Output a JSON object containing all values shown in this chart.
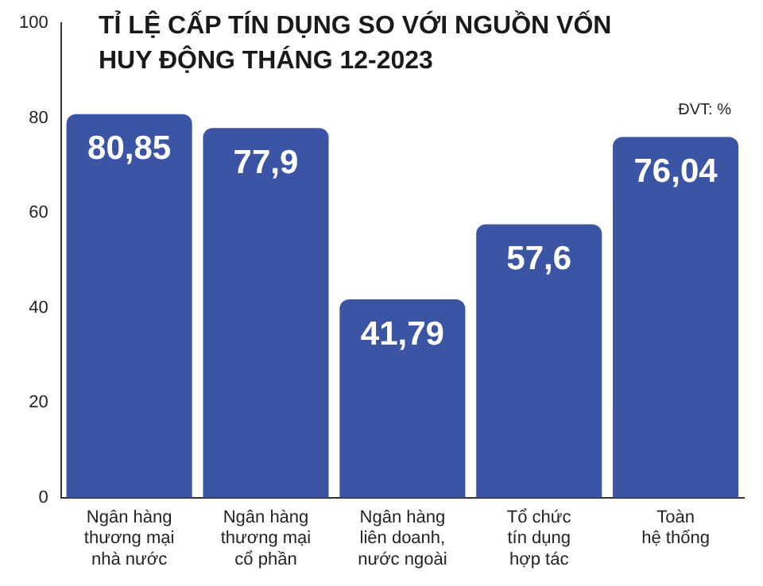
{
  "chart_data": {
    "type": "bar",
    "title": "TỈ LỆ CẤP TÍN DỤNG SO VỚI NGUỒN VỐN\nHUY ĐỘNG THÁNG 12-2023",
    "annotations": [
      "ĐVT: %"
    ],
    "categories": [
      "Ngân hàng\nthương mại\nnhà nước",
      "Ngân hàng\nthương mại\ncổ phần",
      "Ngân hàng\nliên doanh,\nnước ngoài",
      "Tổ chức\ntín dụng\nhợp tác",
      "Toàn\nhệ thống"
    ],
    "values": [
      80.85,
      77.9,
      41.79,
      57.6,
      76.04
    ],
    "value_labels": [
      "80,85",
      "77,9",
      "41,79",
      "57,6",
      "76,04"
    ],
    "color": "#3b55a4",
    "ylim": [
      0,
      100
    ],
    "yticks": [
      0,
      20,
      40,
      60,
      80,
      100
    ],
    "grid": false,
    "legend": false
  }
}
